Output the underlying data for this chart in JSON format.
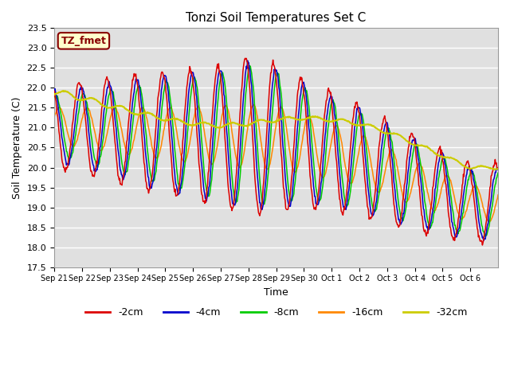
{
  "title": "Tonzi Soil Temperatures Set C",
  "xlabel": "Time",
  "ylabel": "Soil Temperature (C)",
  "ylim": [
    17.5,
    23.5
  ],
  "yticks": [
    17.5,
    18.0,
    18.5,
    19.0,
    19.5,
    20.0,
    20.5,
    21.0,
    21.5,
    22.0,
    22.5,
    23.0,
    23.5
  ],
  "xtick_labels": [
    "Sep 21",
    "Sep 22",
    "Sep 23",
    "Sep 24",
    "Sep 25",
    "Sep 26",
    "Sep 27",
    "Sep 28",
    "Sep 29",
    "Sep 30",
    "Oct 1",
    "Oct 2",
    "Oct 3",
    "Oct 4",
    "Oct 5",
    "Oct 6"
  ],
  "colors": {
    "-2cm": "#dd0000",
    "-4cm": "#0000cc",
    "-8cm": "#00cc00",
    "-16cm": "#ff8800",
    "-32cm": "#cccc00"
  },
  "annotation_text": "TZ_fmet",
  "annotation_bg": "#ffffcc",
  "annotation_border": "#880000",
  "plot_bg": "#e0e0e0",
  "fig_bg": "#ffffff",
  "n_days": 16,
  "base_trend": [
    21.05,
    21.0,
    20.95,
    20.9,
    20.85,
    20.82,
    20.8,
    20.78,
    20.75,
    20.6,
    20.4,
    20.2,
    19.9,
    19.6,
    19.35,
    19.1
  ],
  "amp_2cm": [
    1.05,
    1.15,
    1.3,
    1.45,
    1.55,
    1.65,
    1.75,
    2.0,
    1.85,
    1.6,
    1.5,
    1.4,
    1.3,
    1.2,
    1.1,
    1.0
  ],
  "amp_4cm": [
    0.9,
    1.0,
    1.15,
    1.3,
    1.45,
    1.55,
    1.65,
    1.85,
    1.75,
    1.5,
    1.4,
    1.3,
    1.2,
    1.1,
    1.0,
    0.9
  ],
  "amp_8cm": [
    0.75,
    0.85,
    1.0,
    1.15,
    1.3,
    1.45,
    1.55,
    1.75,
    1.65,
    1.4,
    1.3,
    1.2,
    1.1,
    1.0,
    0.9,
    0.8
  ],
  "amp_16cm": [
    0.45,
    0.5,
    0.55,
    0.6,
    0.65,
    0.7,
    0.75,
    0.8,
    0.8,
    0.75,
    0.7,
    0.65,
    0.6,
    0.55,
    0.5,
    0.45
  ],
  "amp_32cm": [
    0.08,
    0.07,
    0.06,
    0.06,
    0.05,
    0.05,
    0.05,
    0.05,
    0.05,
    0.05,
    0.05,
    0.05,
    0.05,
    0.05,
    0.04,
    0.04
  ],
  "trend_32cm": [
    21.9,
    21.75,
    21.55,
    21.38,
    21.22,
    21.1,
    21.05,
    21.1,
    21.2,
    21.25,
    21.2,
    21.1,
    20.9,
    20.6,
    20.3,
    20.0
  ]
}
